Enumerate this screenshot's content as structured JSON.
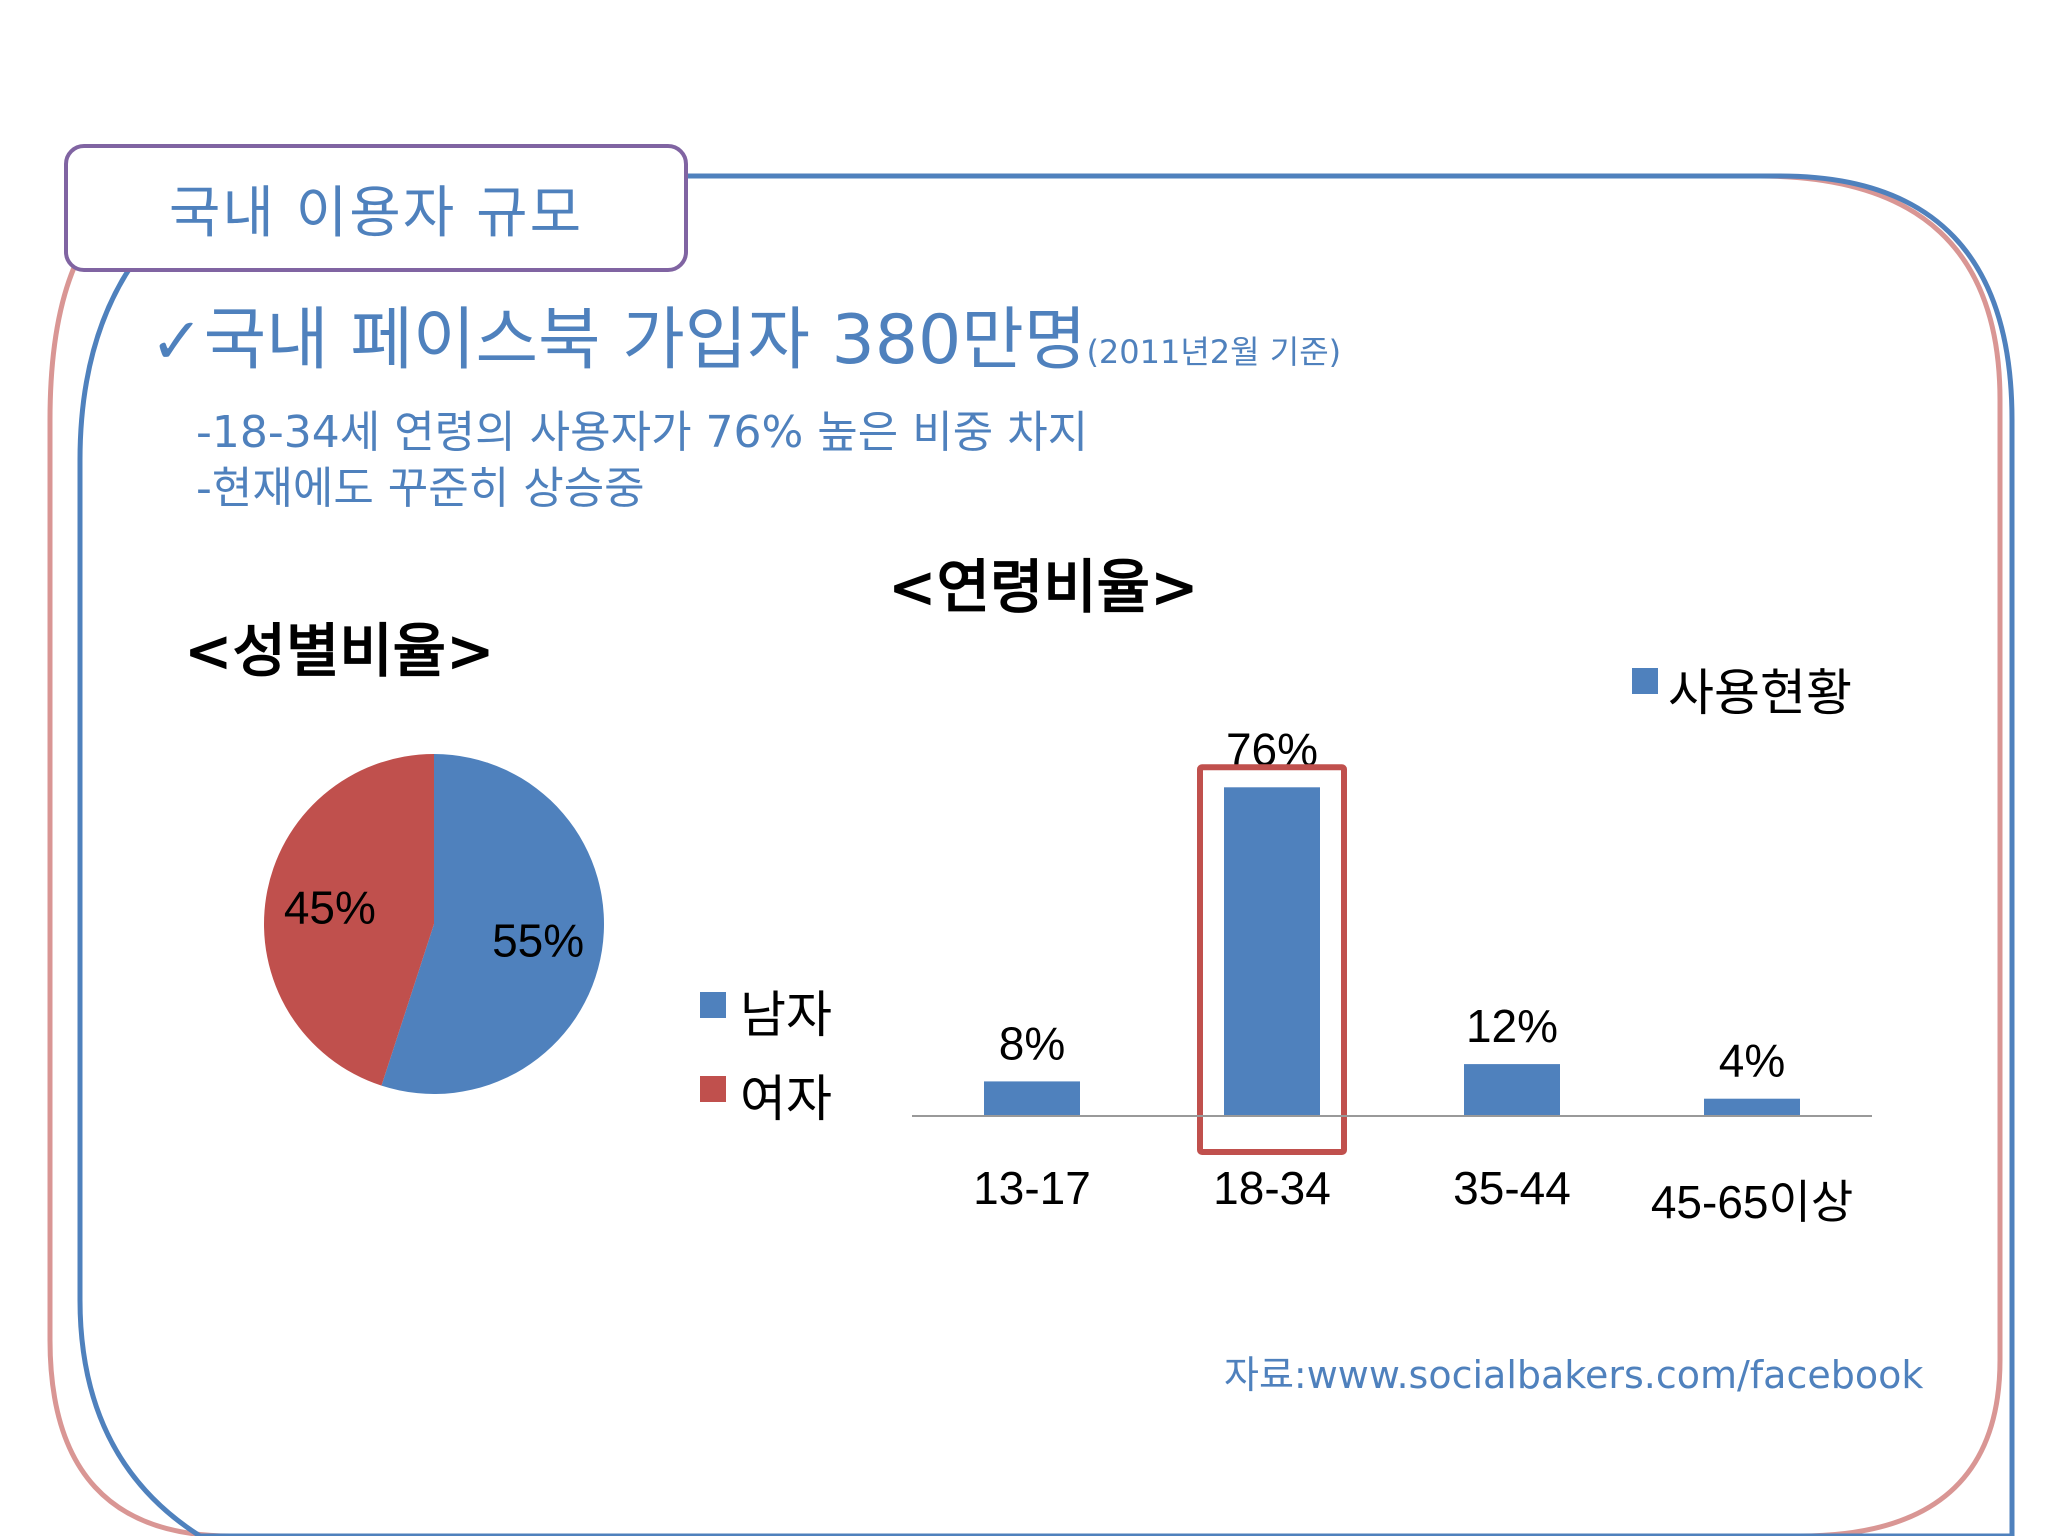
{
  "slide": {
    "tab_title": "국내 이용자 규모",
    "headline_check": "✓",
    "headline_main": "국내 페이스북 가입자 380만명",
    "headline_note": "(2011년2월 기준)",
    "bullets": [
      "-18-34세 연령의 사용자가 76% 높은 비중 차지",
      "-현재에도 꾸준히 상승중"
    ],
    "source": "자료:www.socialbakers.com/facebook"
  },
  "colors": {
    "accent_blue": "#4f81bd",
    "accent_red": "#c0504d",
    "tab_border": "#8064a2",
    "frame_pink": "#d99694",
    "highlight_red": "#c0504d"
  },
  "chart_data": [
    {
      "type": "pie",
      "title": "<성별비율>",
      "labels": [
        "남자",
        "여자"
      ],
      "values": [
        55,
        45
      ],
      "data_labels": [
        "55%",
        "45%"
      ],
      "colors": [
        "#4f81bd",
        "#c0504d"
      ],
      "legend_position": "right"
    },
    {
      "type": "bar",
      "title": "<연령비율>",
      "categories": [
        "13-17",
        "18-34",
        "35-44",
        "45-65이상"
      ],
      "series": [
        {
          "name": "사용현황",
          "values": [
            8,
            76,
            12,
            4
          ],
          "color": "#4f81bd"
        }
      ],
      "data_labels": [
        "8%",
        "76%",
        "12%",
        "4%"
      ],
      "ylim": [
        0,
        80
      ],
      "highlight_category": "18-34",
      "legend_position": "top-right",
      "grid": false
    }
  ]
}
